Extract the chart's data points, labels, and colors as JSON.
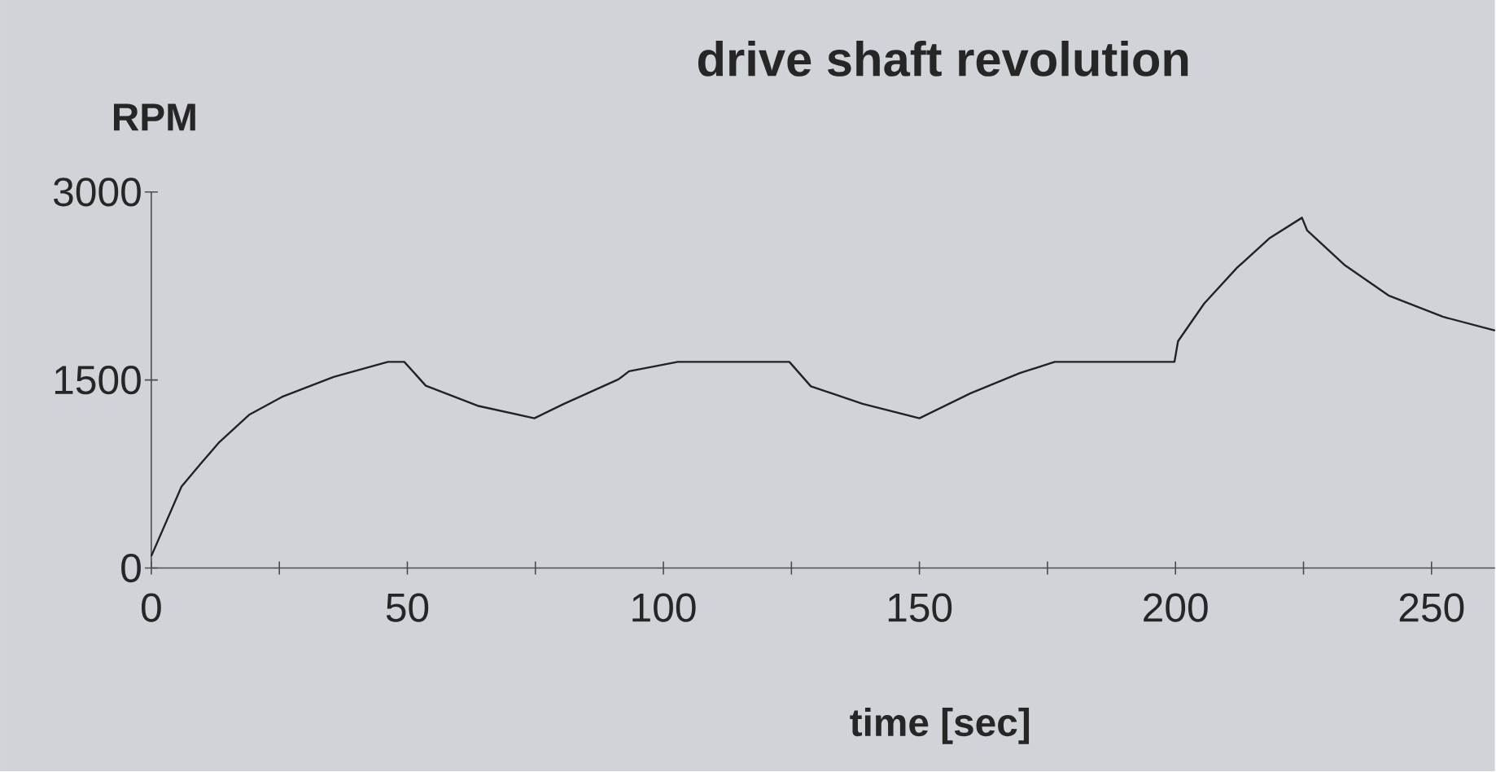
{
  "chart_data": {
    "type": "line",
    "title": "drive shaft revolution",
    "xlabel": "time [sec]",
    "ylabel": "RPM",
    "series": [
      {
        "color": "#222222",
        "x": [
          0,
          5.9,
          9.6,
          13.3,
          19.2,
          25.5,
          35.6,
          46.2,
          49.4,
          53.6,
          63.7,
          74.8,
          80.6,
          91.2,
          93.3,
          102.8,
          124.6,
          128.8,
          138.9,
          150,
          160,
          169.6,
          176.4,
          199.8,
          200.5,
          205.6,
          212,
          218.3,
          224.7,
          225.7,
          233.1,
          241.6,
          252.2,
          262.4
        ],
        "values": [
          95,
          650,
          830,
          1005,
          1225,
          1365,
          1525,
          1645,
          1645,
          1455,
          1295,
          1195,
          1310,
          1505,
          1570,
          1645,
          1645,
          1450,
          1310,
          1195,
          1395,
          1555,
          1645,
          1645,
          1810,
          2110,
          2395,
          2630,
          2795,
          2695,
          2415,
          2175,
          2005,
          1895
        ]
      }
    ],
    "xlim": [
      0,
      262.4
    ],
    "xticks": [
      0,
      {
        "value": 25,
        "label": null
      },
      50,
      {
        "value": 75,
        "label": null
      },
      100,
      {
        "value": 125,
        "label": null
      },
      150,
      {
        "value": 175,
        "label": null
      },
      200,
      {
        "value": 225,
        "label": null
      },
      250
    ],
    "ylim": [
      0,
      3000
    ],
    "yticks": [
      0,
      1500,
      3000
    ],
    "marker": "none",
    "line_style": "solid"
  }
}
